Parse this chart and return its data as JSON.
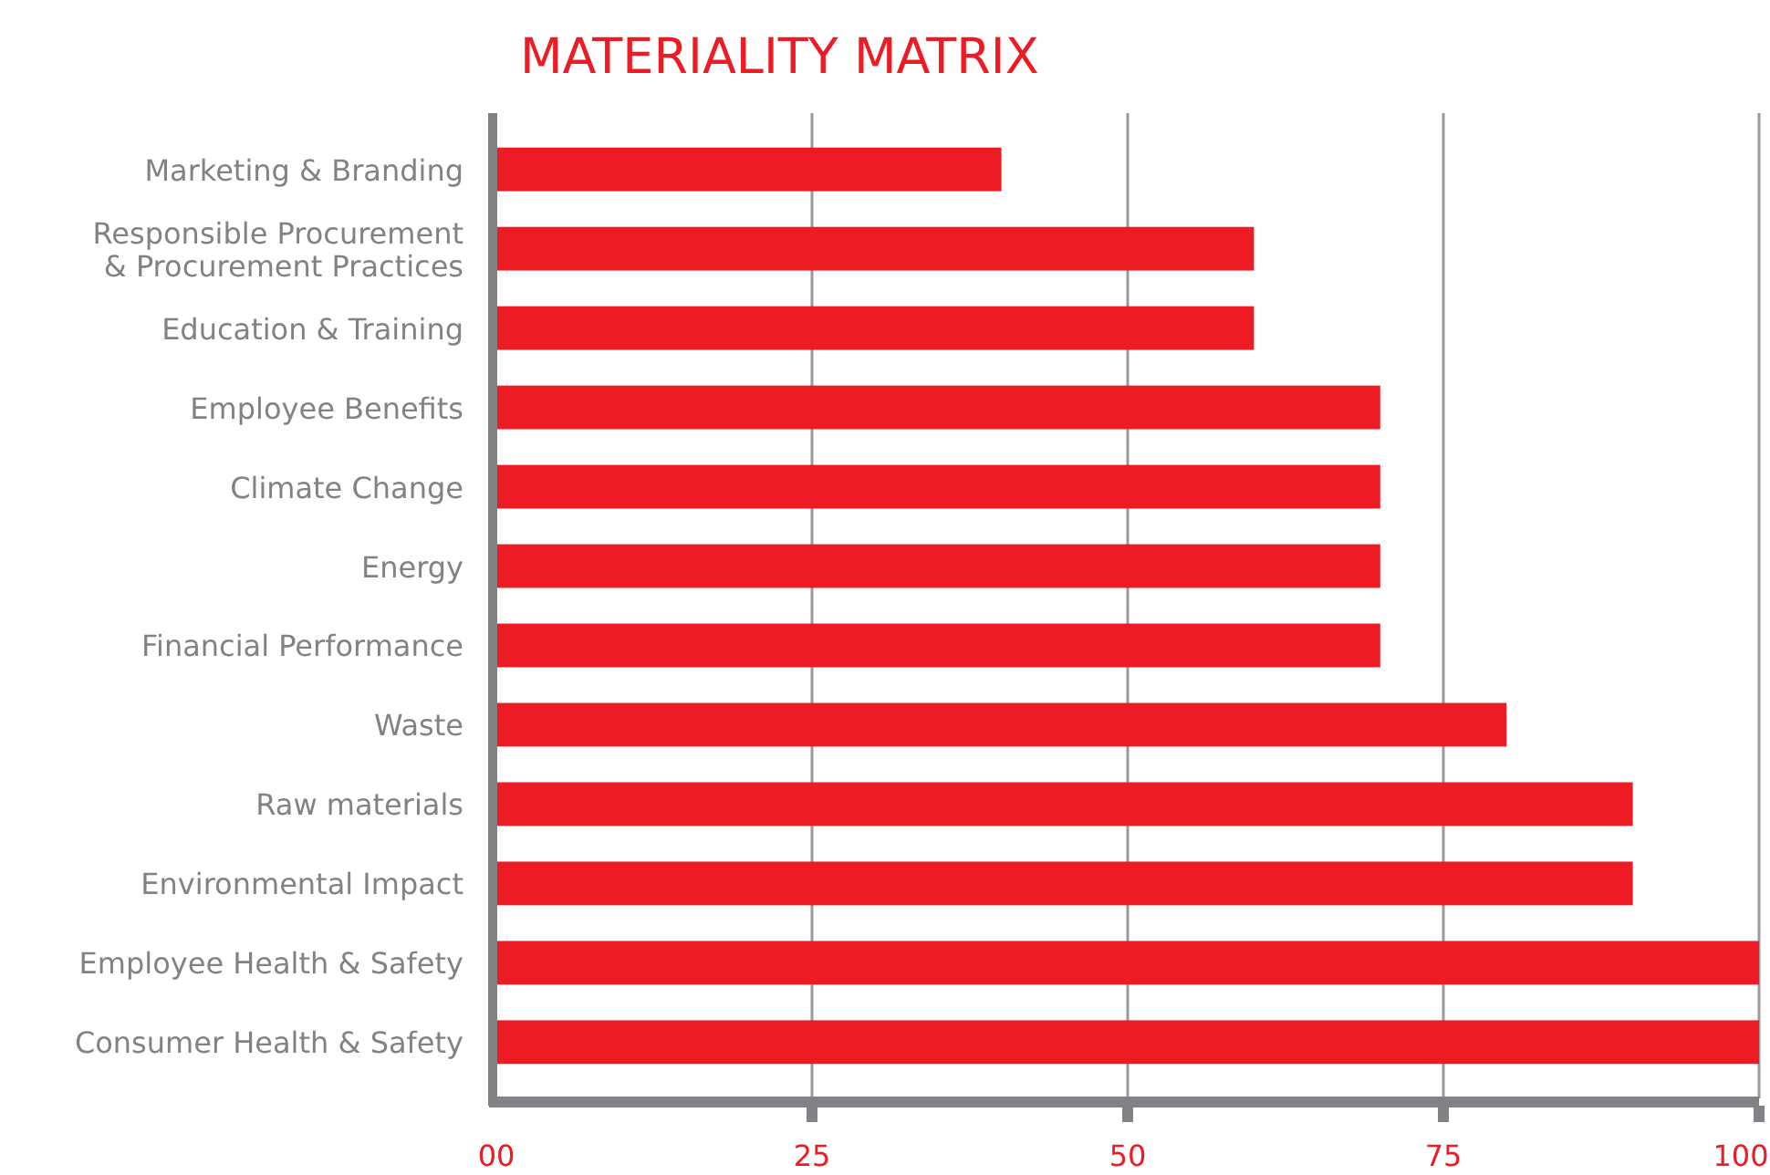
{
  "chart_data": {
    "type": "bar",
    "orientation": "horizontal",
    "title": "MATERIALITY MATRIX",
    "categories": [
      "Marketing & Branding",
      "Responsible Procurement\n& Procurement Practices",
      "Education & Training",
      "Employee Benefits",
      "Climate Change",
      "Energy",
      "Financial Performance",
      "Waste",
      "Raw materials",
      "Environmental Impact",
      "Employee Health & Safety",
      "Consumer Health & Safety"
    ],
    "values": [
      40,
      60,
      60,
      70,
      70,
      70,
      70,
      80,
      90,
      90,
      100,
      100
    ],
    "color": "#ed1c24",
    "xlim": [
      0,
      100
    ],
    "xticks": [
      {
        "value": 0,
        "label": "00"
      },
      25,
      50,
      75,
      100
    ],
    "grid": "x"
  }
}
